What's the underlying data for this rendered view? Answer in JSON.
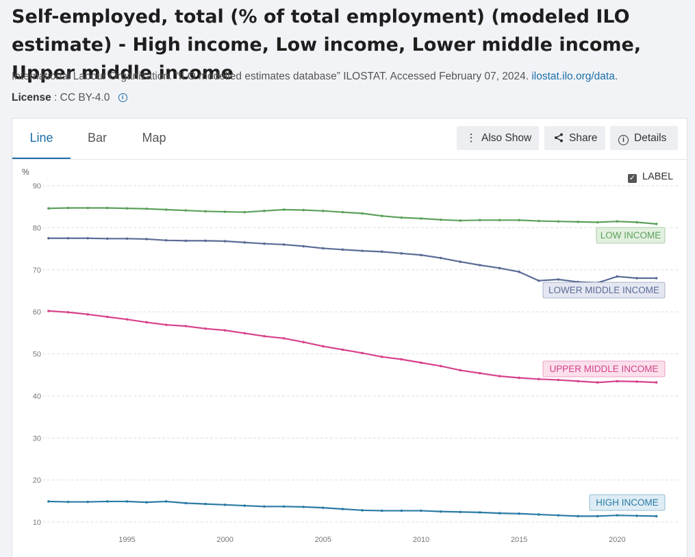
{
  "header": {
    "title": "Self-employed, total (% of total employment) (modeled ILO estimate) - High income, Low income, Lower middle income, Upper middle income",
    "source_text": "International Labour Organization. “ILO modelled estimates database” ILOSTAT. Accessed February 07, 2024.",
    "source_link": "ilostat.ilo.org/data",
    "source_end": ".",
    "license_label": "License",
    "license_value": " : CC BY-4.0"
  },
  "tabs": [
    {
      "label": "Line",
      "active": true
    },
    {
      "label": "Bar",
      "active": false
    },
    {
      "label": "Map",
      "active": false
    }
  ],
  "toolbar": {
    "also_show": "Also Show",
    "share": "Share",
    "details": "Details"
  },
  "label_toggle": {
    "label": "LABEL",
    "checked": true
  },
  "chart_data": {
    "type": "line",
    "ylabel": "%",
    "ylim": [
      10,
      90
    ],
    "yticks": [
      10,
      20,
      30,
      40,
      50,
      60,
      70,
      80,
      90
    ],
    "xlim": [
      1991,
      2022
    ],
    "xticks": [
      1995,
      2000,
      2005,
      2010,
      2015,
      2020
    ],
    "grid": true,
    "x": [
      1991,
      1992,
      1993,
      1994,
      1995,
      1996,
      1997,
      1998,
      1999,
      2000,
      2001,
      2002,
      2003,
      2004,
      2005,
      2006,
      2007,
      2008,
      2009,
      2010,
      2011,
      2012,
      2013,
      2014,
      2015,
      2016,
      2017,
      2018,
      2019,
      2020,
      2021,
      2022
    ],
    "series": [
      {
        "name": "LOW INCOME",
        "color": "#5ca05a",
        "values": [
          84.6,
          84.7,
          84.7,
          84.7,
          84.6,
          84.5,
          84.3,
          84.1,
          83.9,
          83.8,
          83.7,
          84.0,
          84.3,
          84.2,
          84.0,
          83.7,
          83.4,
          82.8,
          82.4,
          82.2,
          81.9,
          81.7,
          81.8,
          81.8,
          81.8,
          81.6,
          81.5,
          81.4,
          81.3,
          81.5,
          81.3,
          80.9
        ]
      },
      {
        "name": "LOWER MIDDLE INCOME",
        "color": "#5b6b96",
        "values": [
          77.5,
          77.5,
          77.5,
          77.4,
          77.4,
          77.3,
          77.0,
          76.9,
          76.9,
          76.8,
          76.5,
          76.2,
          76.0,
          75.6,
          75.1,
          74.8,
          74.5,
          74.3,
          73.9,
          73.5,
          72.8,
          71.9,
          71.1,
          70.4,
          69.5,
          67.4,
          67.7,
          67.1,
          66.9,
          68.4,
          68.0,
          68.0
        ]
      },
      {
        "name": "UPPER MIDDLE INCOME",
        "color": "#d6428a",
        "values": [
          60.2,
          59.9,
          59.4,
          58.8,
          58.2,
          57.5,
          56.9,
          56.6,
          56.0,
          55.6,
          54.9,
          54.2,
          53.7,
          52.8,
          51.8,
          51.0,
          50.2,
          49.3,
          48.7,
          47.9,
          47.1,
          46.1,
          45.4,
          44.7,
          44.3,
          44.0,
          43.8,
          43.5,
          43.2,
          43.5,
          43.4,
          43.2
        ]
      },
      {
        "name": "HIGH INCOME",
        "color": "#2a7aa5",
        "values": [
          14.9,
          14.8,
          14.8,
          14.9,
          14.9,
          14.7,
          14.9,
          14.5,
          14.3,
          14.1,
          13.9,
          13.7,
          13.7,
          13.6,
          13.4,
          13.1,
          12.8,
          12.7,
          12.7,
          12.7,
          12.5,
          12.4,
          12.3,
          12.1,
          12.0,
          11.8,
          11.6,
          11.4,
          11.4,
          11.6,
          11.5,
          11.4
        ]
      }
    ]
  }
}
